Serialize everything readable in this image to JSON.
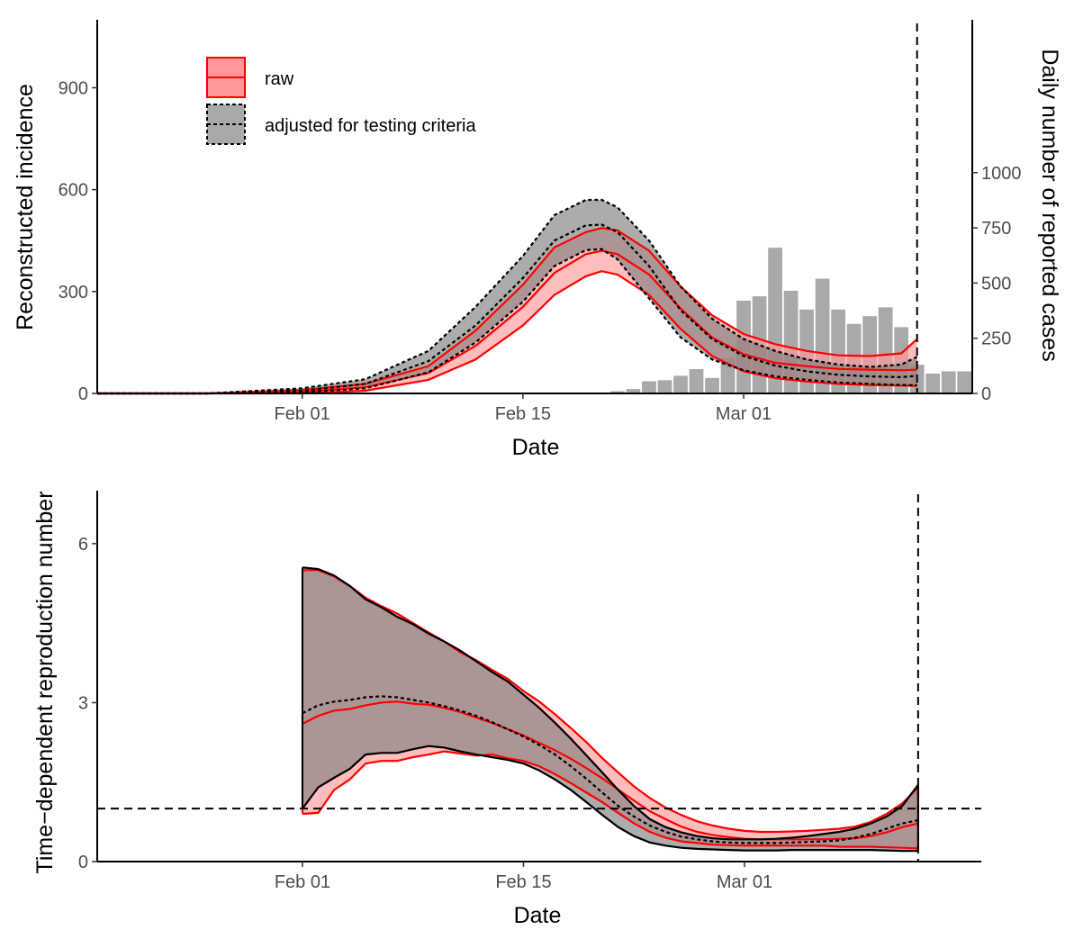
{
  "chart_data": [
    {
      "type": "area",
      "xlabel": "Date",
      "ylabel": "Reconstructed incidence",
      "ylabel_right": "Daily number of reported cases",
      "x_tick_labels": [
        "Feb 01",
        "Feb 15",
        "Mar 01"
      ],
      "x_tick_days": [
        32,
        46,
        60
      ],
      "xlim": [
        19,
        74.5
      ],
      "ylim": [
        0,
        1100
      ],
      "y_ticks": [
        0,
        300,
        600,
        900
      ],
      "y_ticks_right": [
        0,
        250,
        500,
        750,
        1000
      ],
      "right_axis_scale": 0.65,
      "vline_day": 71,
      "grid": false,
      "legend_position": "top-left",
      "legend": [
        {
          "label": "raw",
          "line": "solid",
          "fill": "#ff9999",
          "edge": "#ff0000"
        },
        {
          "label": "adjusted for testing criteria",
          "line": "dotted",
          "fill": "#808080",
          "edge": "#000000"
        }
      ],
      "series": [
        {
          "name": "raw",
          "color": "#ff0000",
          "fill": "#ff9999",
          "x": [
            19,
            26,
            32,
            36,
            40,
            43,
            46,
            48,
            50,
            51,
            52,
            54,
            56,
            58,
            60,
            62,
            64,
            66,
            68,
            70,
            71
          ],
          "lower": [
            0,
            0,
            0,
            8,
            40,
            100,
            200,
            290,
            345,
            360,
            350,
            290,
            190,
            110,
            65,
            45,
            35,
            28,
            25,
            23,
            22
          ],
          "mid": [
            0,
            0,
            5,
            18,
            60,
            140,
            255,
            355,
            410,
            420,
            410,
            350,
            250,
            165,
            115,
            90,
            80,
            72,
            70,
            68,
            70
          ],
          "upper": [
            0,
            0,
            10,
            28,
            80,
            185,
            320,
            430,
            475,
            487,
            480,
            420,
            315,
            230,
            175,
            145,
            125,
            112,
            110,
            118,
            160
          ]
        },
        {
          "name": "adjusted for testing criteria",
          "color": "#000000",
          "fill": "#808080",
          "x": [
            19,
            26,
            32,
            36,
            40,
            43,
            46,
            48,
            50,
            51,
            52,
            54,
            56,
            58,
            60,
            62,
            64,
            66,
            68,
            70,
            71
          ],
          "lower": [
            0,
            0,
            3,
            15,
            62,
            150,
            270,
            375,
            422,
            425,
            395,
            280,
            165,
            100,
            68,
            50,
            40,
            32,
            28,
            25,
            24
          ],
          "mid": [
            0,
            0,
            8,
            28,
            95,
            200,
            340,
            450,
            495,
            497,
            475,
            375,
            245,
            160,
            110,
            82,
            65,
            55,
            50,
            48,
            52
          ],
          "upper": [
            0,
            0,
            15,
            42,
            125,
            255,
            405,
            525,
            570,
            570,
            548,
            450,
            315,
            220,
            160,
            125,
            100,
            85,
            78,
            85,
            108
          ]
        }
      ],
      "bars": {
        "color": "#a9a9a9",
        "days": [
          52,
          53,
          54,
          55,
          56,
          57,
          58,
          59,
          60,
          61,
          62,
          63,
          64,
          65,
          66,
          67,
          68,
          69,
          70,
          71,
          72,
          73,
          74
        ],
        "values": [
          10,
          20,
          55,
          60,
          80,
          110,
          70,
          160,
          420,
          440,
          660,
          465,
          380,
          520,
          380,
          315,
          350,
          390,
          300,
          130,
          90,
          100,
          100
        ]
      }
    },
    {
      "type": "area",
      "xlabel": "Date",
      "ylabel": "Time−dependent reproduction number",
      "x_tick_labels": [
        "Feb 01",
        "Feb 15",
        "Mar 01"
      ],
      "x_tick_days": [
        32,
        46,
        60
      ],
      "xlim": [
        19,
        75
      ],
      "ylim": [
        0,
        7
      ],
      "y_ticks": [
        0,
        3,
        6
      ],
      "hline": 1,
      "vline_day": 71,
      "grid": false,
      "series": [
        {
          "name": "raw",
          "color": "#ff0000",
          "fill": "#ff9999",
          "x": [
            32,
            33,
            34,
            35,
            36,
            37,
            38,
            39,
            40,
            41,
            42,
            43,
            44,
            45,
            46,
            47,
            48,
            49,
            50,
            51,
            52,
            53,
            54,
            55,
            56,
            57,
            58,
            59,
            60,
            61,
            62,
            63,
            64,
            65,
            66,
            67,
            68,
            69,
            70,
            71
          ],
          "lower": [
            0.9,
            0.92,
            1.35,
            1.55,
            1.85,
            1.9,
            1.9,
            1.97,
            2.02,
            2.08,
            2.04,
            2.0,
            2.02,
            1.95,
            1.9,
            1.8,
            1.65,
            1.48,
            1.3,
            1.12,
            0.92,
            0.72,
            0.56,
            0.45,
            0.38,
            0.35,
            0.32,
            0.31,
            0.3,
            0.3,
            0.3,
            0.3,
            0.3,
            0.3,
            0.28,
            0.28,
            0.28,
            0.27,
            0.26,
            0.25
          ],
          "mid": [
            2.6,
            2.75,
            2.85,
            2.88,
            2.95,
            3.0,
            3.02,
            2.98,
            2.96,
            2.9,
            2.82,
            2.72,
            2.62,
            2.5,
            2.38,
            2.24,
            2.1,
            1.94,
            1.76,
            1.57,
            1.36,
            1.15,
            0.95,
            0.8,
            0.66,
            0.56,
            0.5,
            0.46,
            0.43,
            0.42,
            0.42,
            0.42,
            0.42,
            0.42,
            0.43,
            0.44,
            0.48,
            0.55,
            0.65,
            0.72
          ],
          "upper": [
            5.5,
            5.5,
            5.38,
            5.2,
            4.98,
            4.82,
            4.68,
            4.5,
            4.32,
            4.15,
            3.95,
            3.8,
            3.62,
            3.45,
            3.22,
            3.02,
            2.78,
            2.52,
            2.25,
            1.95,
            1.68,
            1.42,
            1.2,
            1.02,
            0.88,
            0.76,
            0.68,
            0.62,
            0.58,
            0.56,
            0.56,
            0.57,
            0.58,
            0.6,
            0.62,
            0.66,
            0.75,
            0.9,
            1.1,
            1.4
          ]
        },
        {
          "name": "adjusted for testing criteria",
          "color": "#000000",
          "fill": "#808080",
          "x": [
            32,
            33,
            34,
            35,
            36,
            37,
            38,
            39,
            40,
            41,
            42,
            43,
            44,
            45,
            46,
            47,
            48,
            49,
            50,
            51,
            52,
            53,
            54,
            55,
            56,
            57,
            58,
            59,
            60,
            61,
            62,
            63,
            64,
            65,
            66,
            67,
            68,
            69,
            70,
            71
          ],
          "lower": [
            1.0,
            1.4,
            1.58,
            1.75,
            2.02,
            2.05,
            2.05,
            2.12,
            2.18,
            2.15,
            2.08,
            2.02,
            1.97,
            1.92,
            1.85,
            1.72,
            1.55,
            1.35,
            1.12,
            0.88,
            0.65,
            0.48,
            0.36,
            0.3,
            0.26,
            0.24,
            0.23,
            0.22,
            0.21,
            0.21,
            0.21,
            0.22,
            0.22,
            0.22,
            0.22,
            0.22,
            0.22,
            0.21,
            0.2,
            0.2
          ],
          "mid": [
            2.8,
            2.95,
            3.02,
            3.05,
            3.1,
            3.12,
            3.1,
            3.05,
            3.0,
            2.93,
            2.85,
            2.75,
            2.63,
            2.5,
            2.36,
            2.2,
            2.02,
            1.8,
            1.56,
            1.3,
            1.05,
            0.85,
            0.68,
            0.56,
            0.47,
            0.42,
            0.38,
            0.36,
            0.35,
            0.35,
            0.35,
            0.36,
            0.37,
            0.38,
            0.4,
            0.45,
            0.52,
            0.62,
            0.72,
            0.78
          ],
          "upper": [
            5.55,
            5.52,
            5.4,
            5.2,
            4.95,
            4.8,
            4.62,
            4.48,
            4.3,
            4.15,
            3.98,
            3.78,
            3.58,
            3.4,
            3.15,
            2.9,
            2.62,
            2.32,
            2.0,
            1.68,
            1.35,
            1.05,
            0.8,
            0.65,
            0.55,
            0.48,
            0.44,
            0.42,
            0.42,
            0.42,
            0.43,
            0.45,
            0.48,
            0.52,
            0.56,
            0.62,
            0.72,
            0.85,
            1.05,
            1.45
          ]
        }
      ]
    }
  ]
}
